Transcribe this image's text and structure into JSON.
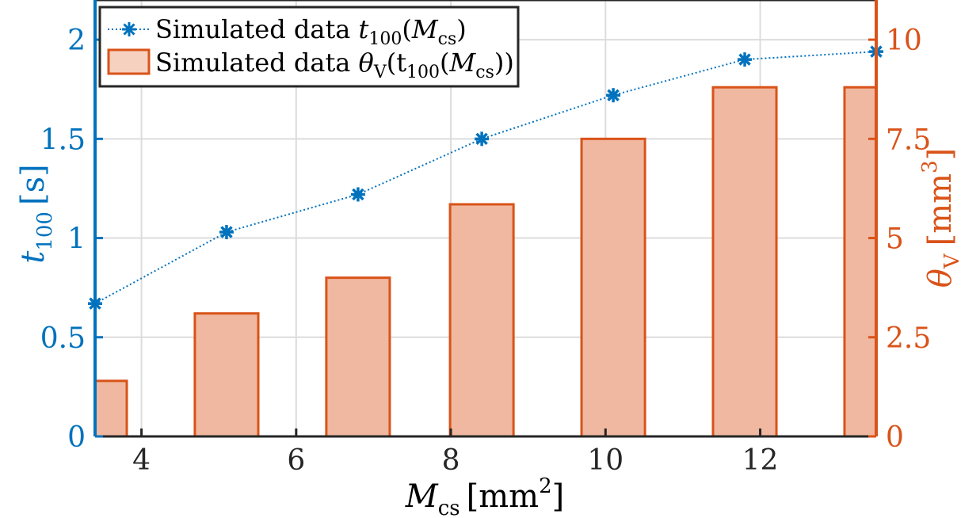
{
  "chart_data": {
    "type": "bar+line",
    "title": "",
    "x": [
      3.4,
      5.1,
      6.8,
      8.4,
      10.1,
      11.8,
      13.5
    ],
    "xlim": [
      3.4,
      13.5
    ],
    "xticks": [
      4,
      6,
      8,
      10,
      12
    ],
    "xlabel": {
      "main": "M",
      "sub": "cs",
      "unit_open": "[",
      "unit": "mm",
      "exp": "2",
      "unit_close": "]"
    },
    "left_axis": {
      "color": "#0072BD",
      "ylim": [
        0,
        2.2
      ],
      "ticks": [
        0,
        0.5,
        1,
        1.5,
        2
      ],
      "label": {
        "main": "t",
        "sub": "100",
        "unit_open": "[",
        "unit": "s",
        "unit_close": "]"
      }
    },
    "right_axis": {
      "color": "#D95319",
      "ylim": [
        0,
        11
      ],
      "ticks": [
        0,
        2.5,
        5,
        7.5,
        10
      ],
      "label": {
        "main": "θ",
        "sub": "V",
        "unit_open": "[",
        "unit": "mm",
        "exp": "3",
        "unit_close": "]"
      }
    },
    "series": [
      {
        "name": "Simulated data t100(Mcs)",
        "kind": "line",
        "axis": "left",
        "marker": "asterisk",
        "color": "#0072BD",
        "values": [
          0.67,
          1.03,
          1.22,
          1.5,
          1.72,
          1.9,
          1.94
        ]
      },
      {
        "name": "Simulated data θV(t100(Mcs))",
        "kind": "bar",
        "axis": "right",
        "color": "#D95319",
        "fill": "#F0B8A0",
        "bar_width": 0.82,
        "values": [
          1.4,
          3.1,
          4.0,
          5.85,
          7.5,
          8.8,
          8.8
        ]
      }
    ],
    "legend": {
      "position": "top-left",
      "entries": [
        {
          "prefix": "Simulated data ",
          "sym": "t",
          "sub": "100",
          "rest": "(",
          "sym2": "M",
          "sub2": "cs",
          "end": ")"
        },
        {
          "prefix": "Simulated data ",
          "sym": "θ",
          "sub": "V",
          "rest": "(t",
          "sub_mid": "100",
          "rest2": "(",
          "sym2": "M",
          "sub2": "cs",
          "end": "))"
        }
      ]
    },
    "grid": true
  }
}
